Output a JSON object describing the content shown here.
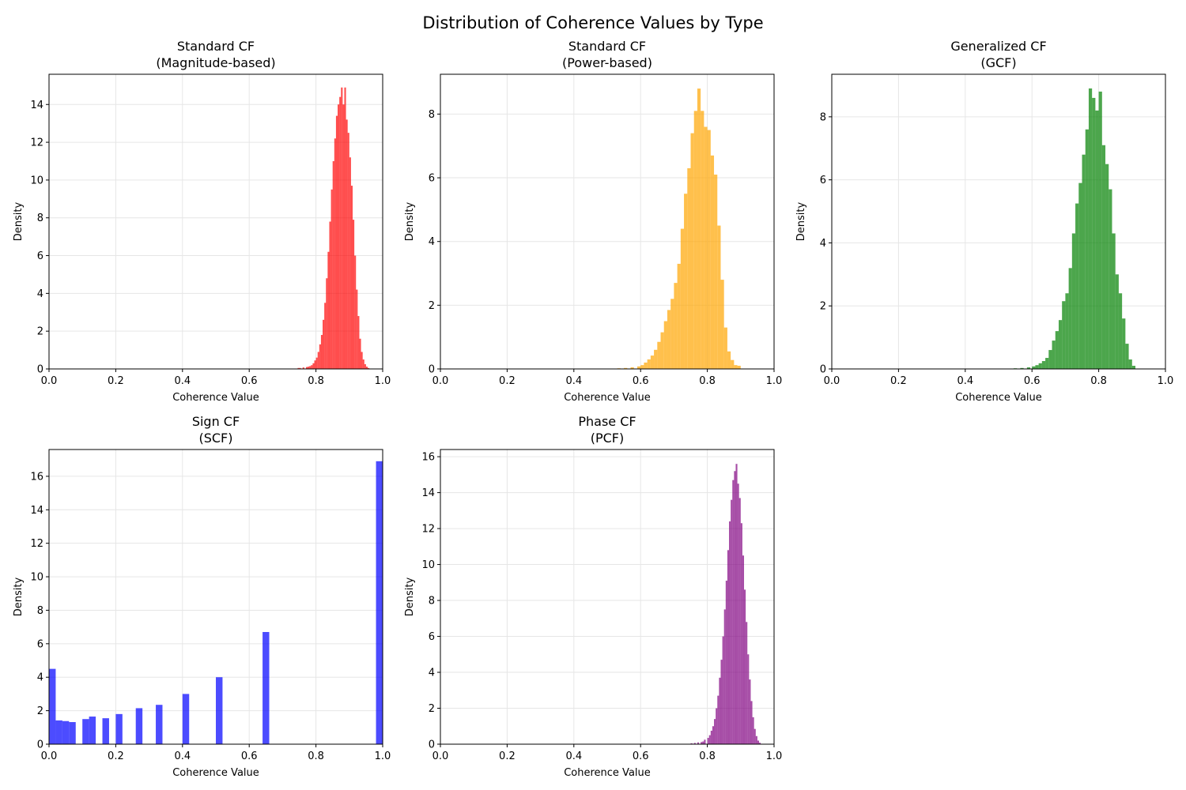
{
  "figure": {
    "title": "Distribution of Coherence Values by Type"
  },
  "chart_data": [
    {
      "type": "bar",
      "title_line1": "Standard CF",
      "title_line2": "(Magnitude-based)",
      "xlabel": "Coherence Value",
      "ylabel": "Density",
      "xlim": [
        0,
        1
      ],
      "ylim": [
        0,
        15.6
      ],
      "xticks": [
        "0.0",
        "0.2",
        "0.4",
        "0.6",
        "0.8",
        "1.0"
      ],
      "yticks": [
        "0",
        "2",
        "4",
        "6",
        "8",
        "10",
        "12",
        "14"
      ],
      "ytick_values": [
        0,
        2,
        4,
        6,
        8,
        10,
        12,
        14
      ],
      "grid": true,
      "color": "#ff0000",
      "bin_width": 0.005,
      "x": [
        0.745,
        0.75,
        0.76,
        0.77,
        0.775,
        0.78,
        0.785,
        0.79,
        0.795,
        0.8,
        0.805,
        0.81,
        0.815,
        0.82,
        0.825,
        0.83,
        0.835,
        0.84,
        0.845,
        0.85,
        0.855,
        0.86,
        0.865,
        0.87,
        0.875,
        0.88,
        0.885,
        0.89,
        0.895,
        0.9,
        0.905,
        0.91,
        0.915,
        0.92,
        0.925,
        0.93,
        0.935,
        0.94,
        0.945,
        0.95,
        0.955
      ],
      "values": [
        0.05,
        0.05,
        0.08,
        0.1,
        0.12,
        0.15,
        0.2,
        0.3,
        0.45,
        0.6,
        0.9,
        1.3,
        1.8,
        2.6,
        3.5,
        4.8,
        6.2,
        7.8,
        9.5,
        11.0,
        12.2,
        13.4,
        14.0,
        14.4,
        14.9,
        14.0,
        14.9,
        13.2,
        12.5,
        11.2,
        9.7,
        7.9,
        6.0,
        4.2,
        2.8,
        1.6,
        0.9,
        0.5,
        0.25,
        0.12,
        0.05
      ]
    },
    {
      "type": "bar",
      "title_line1": "Standard CF",
      "title_line2": "(Power-based)",
      "xlabel": "Coherence Value",
      "ylabel": "Density",
      "xlim": [
        0,
        1
      ],
      "ylim": [
        0,
        9.25
      ],
      "xticks": [
        "0.0",
        "0.2",
        "0.4",
        "0.6",
        "0.8",
        "1.0"
      ],
      "yticks": [
        "0",
        "2",
        "4",
        "6",
        "8"
      ],
      "ytick_values": [
        0,
        2,
        4,
        6,
        8
      ],
      "grid": true,
      "color": "#ffa500",
      "bin_width": 0.01,
      "x": [
        0.53,
        0.55,
        0.57,
        0.59,
        0.6,
        0.61,
        0.62,
        0.63,
        0.64,
        0.65,
        0.66,
        0.67,
        0.68,
        0.69,
        0.7,
        0.71,
        0.72,
        0.73,
        0.74,
        0.75,
        0.76,
        0.77,
        0.78,
        0.79,
        0.8,
        0.81,
        0.82,
        0.83,
        0.84,
        0.85,
        0.86,
        0.87,
        0.88,
        0.89
      ],
      "values": [
        0.02,
        0.03,
        0.05,
        0.08,
        0.12,
        0.2,
        0.3,
        0.42,
        0.6,
        0.85,
        1.15,
        1.5,
        1.85,
        2.2,
        2.7,
        3.3,
        4.4,
        5.5,
        6.3,
        7.4,
        8.1,
        8.8,
        8.1,
        7.6,
        7.5,
        6.7,
        6.1,
        4.5,
        2.8,
        1.3,
        0.55,
        0.28,
        0.12,
        0.1
      ]
    },
    {
      "type": "bar",
      "title_line1": "Generalized CF",
      "title_line2": "(GCF)",
      "xlabel": "Coherence Value",
      "ylabel": "Density",
      "xlim": [
        0,
        1
      ],
      "ylim": [
        0,
        9.35
      ],
      "xticks": [
        "0.0",
        "0.2",
        "0.4",
        "0.6",
        "0.8",
        "1.0"
      ],
      "yticks": [
        "0",
        "2",
        "4",
        "6",
        "8"
      ],
      "ytick_values": [
        0,
        2,
        4,
        6,
        8
      ],
      "grid": true,
      "color": "#008000",
      "bin_width": 0.01,
      "x": [
        0.545,
        0.565,
        0.585,
        0.6,
        0.61,
        0.62,
        0.63,
        0.64,
        0.65,
        0.66,
        0.67,
        0.68,
        0.69,
        0.7,
        0.71,
        0.72,
        0.73,
        0.74,
        0.75,
        0.76,
        0.77,
        0.78,
        0.79,
        0.8,
        0.81,
        0.82,
        0.83,
        0.84,
        0.85,
        0.86,
        0.87,
        0.88,
        0.89,
        0.9
      ],
      "values": [
        0.02,
        0.03,
        0.05,
        0.08,
        0.12,
        0.18,
        0.25,
        0.35,
        0.6,
        0.9,
        1.2,
        1.55,
        2.15,
        2.4,
        3.2,
        4.3,
        5.25,
        5.9,
        6.8,
        7.6,
        8.9,
        8.6,
        8.2,
        8.8,
        7.1,
        6.5,
        5.7,
        4.3,
        3.0,
        2.4,
        1.6,
        0.8,
        0.3,
        0.1
      ]
    },
    {
      "type": "bar",
      "title_line1": "Sign CF",
      "title_line2": "(SCF)",
      "xlabel": "Coherence Value",
      "ylabel": "Density",
      "xlim": [
        0,
        1
      ],
      "ylim": [
        0,
        17.6
      ],
      "xticks": [
        "0.0",
        "0.2",
        "0.4",
        "0.6",
        "0.8",
        "1.0"
      ],
      "yticks": [
        "0",
        "2",
        "4",
        "6",
        "8",
        "10",
        "12",
        "14",
        "16"
      ],
      "ytick_values": [
        0,
        2,
        4,
        6,
        8,
        10,
        12,
        14,
        16
      ],
      "grid": true,
      "color": "#0000ff",
      "bin_width": 0.02,
      "x": [
        0.0,
        0.02,
        0.04,
        0.06,
        0.1,
        0.12,
        0.16,
        0.2,
        0.26,
        0.32,
        0.4,
        0.5,
        0.64,
        0.98
      ],
      "values": [
        4.5,
        1.42,
        1.38,
        1.32,
        1.5,
        1.65,
        1.55,
        1.8,
        2.15,
        2.35,
        3.0,
        4.0,
        6.7,
        16.9
      ]
    },
    {
      "type": "bar",
      "title_line1": "Phase CF",
      "title_line2": "(PCF)",
      "xlabel": "Coherence Value",
      "ylabel": "Density",
      "xlim": [
        0,
        1
      ],
      "ylim": [
        0,
        16.4
      ],
      "xticks": [
        "0.0",
        "0.2",
        "0.4",
        "0.6",
        "0.8",
        "1.0"
      ],
      "yticks": [
        "0",
        "2",
        "4",
        "6",
        "8",
        "10",
        "12",
        "14",
        "16"
      ],
      "ytick_values": [
        0,
        2,
        4,
        6,
        8,
        10,
        12,
        14,
        16
      ],
      "grid": true,
      "color": "#800080",
      "bin_width": 0.005,
      "x": [
        0.75,
        0.76,
        0.77,
        0.78,
        0.785,
        0.79,
        0.8,
        0.805,
        0.81,
        0.815,
        0.82,
        0.825,
        0.83,
        0.835,
        0.84,
        0.845,
        0.85,
        0.855,
        0.86,
        0.865,
        0.87,
        0.875,
        0.88,
        0.885,
        0.89,
        0.895,
        0.9,
        0.905,
        0.91,
        0.915,
        0.92,
        0.925,
        0.93,
        0.935,
        0.94,
        0.945,
        0.95,
        0.955
      ],
      "values": [
        0.05,
        0.07,
        0.1,
        0.12,
        0.15,
        0.25,
        0.35,
        0.5,
        0.75,
        1.0,
        1.4,
        2.0,
        2.7,
        3.7,
        4.7,
        6.0,
        7.5,
        9.1,
        10.8,
        12.4,
        13.6,
        14.7,
        15.2,
        15.6,
        14.5,
        13.7,
        12.3,
        10.5,
        8.6,
        6.8,
        5.0,
        3.6,
        2.4,
        1.5,
        0.85,
        0.45,
        0.2,
        0.08
      ]
    }
  ]
}
